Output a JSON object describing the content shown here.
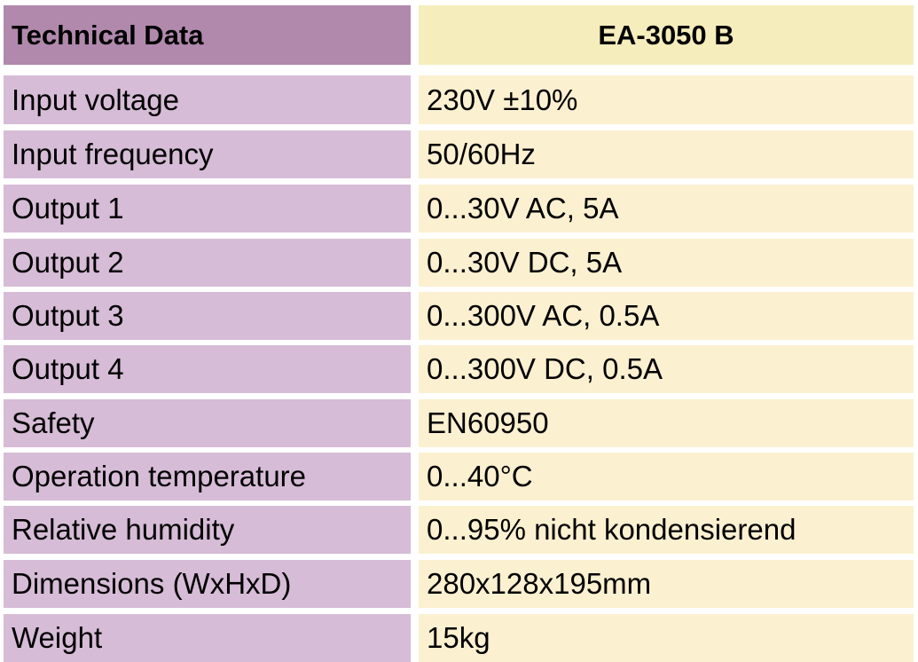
{
  "colors": {
    "header_left_bg": "#b189ad",
    "header_right_bg": "#f6edbd",
    "row_left_bg": "#d6bcd6",
    "row_right_bg": "#fbf0d0"
  },
  "table": {
    "header": {
      "label": "Technical Data",
      "model": "EA-3050 B"
    },
    "rows": [
      {
        "label": "Input voltage",
        "value": "230V ±10%"
      },
      {
        "label": "Input frequency",
        "value": "50/60Hz"
      },
      {
        "label": "Output 1",
        "value": "0...30V AC, 5A"
      },
      {
        "label": "Output 2",
        "value": "0...30V DC, 5A"
      },
      {
        "label": "Output 3",
        "value": "0...300V AC, 0.5A"
      },
      {
        "label": "Output 4",
        "value": "0...300V DC, 0.5A"
      },
      {
        "label": "Safety",
        "value": "EN60950"
      },
      {
        "label": "Operation temperature",
        "value": "0...40°C"
      },
      {
        "label": "Relative humidity",
        "value": "0...95% nicht kondensierend"
      },
      {
        "label": "Dimensions (WxHxD)",
        "value": "280x128x195mm"
      },
      {
        "label": "Weight",
        "value": "15kg"
      }
    ]
  }
}
